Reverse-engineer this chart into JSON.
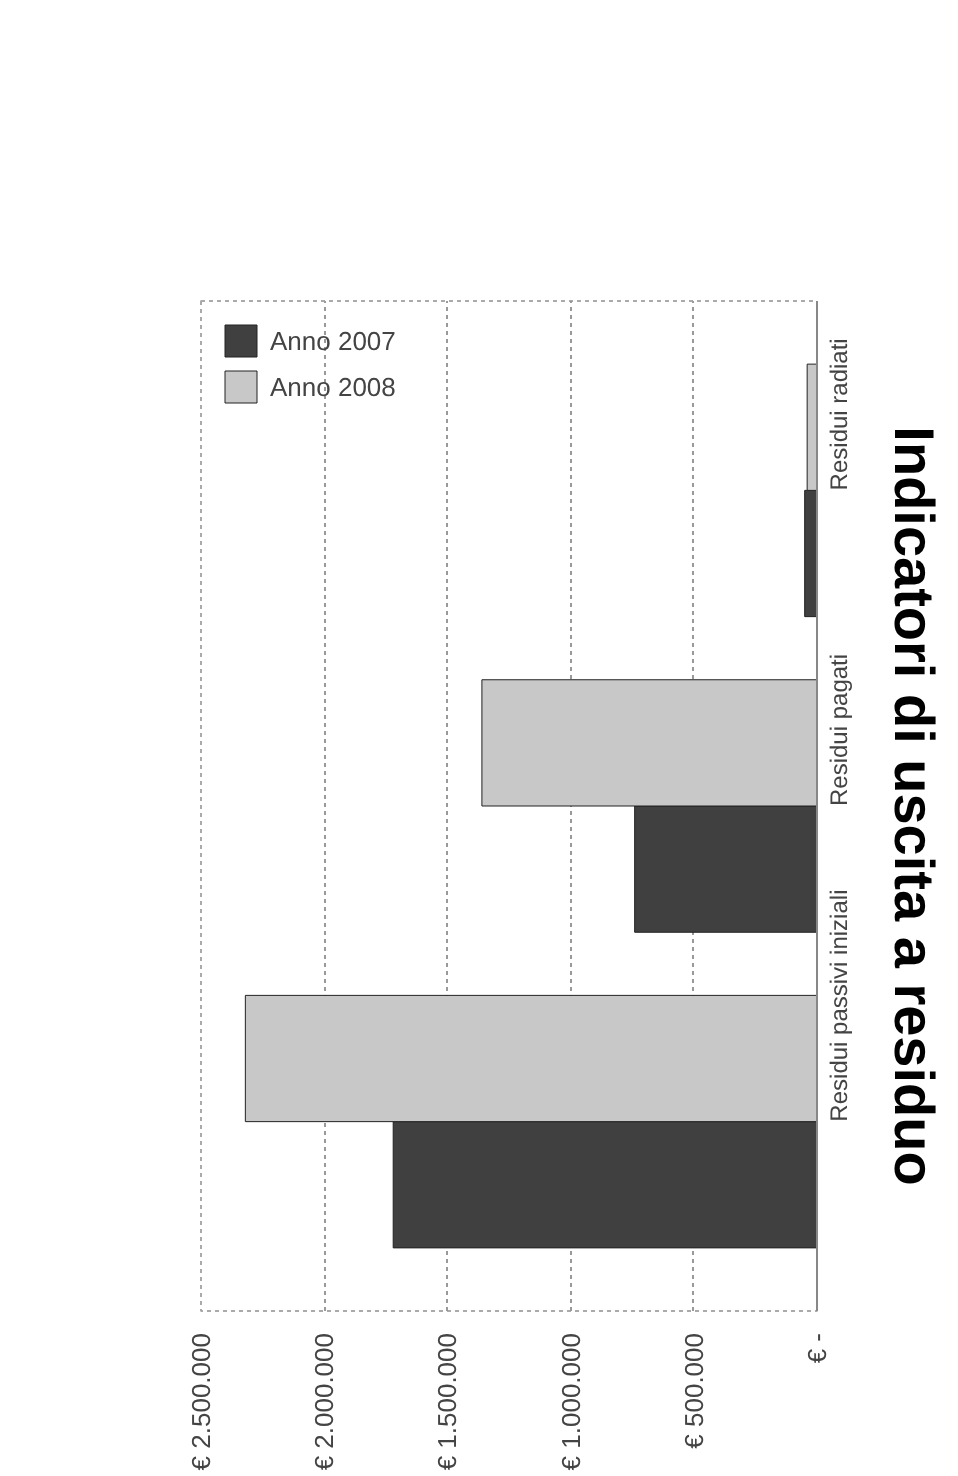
{
  "chart_data": {
    "type": "bar",
    "orientation": "horizontal",
    "title": "Indicatori di uscita a residuo",
    "categories": [
      "Residui radiati",
      "Residui pagati",
      "Residui passivi iniziali"
    ],
    "series": [
      {
        "name": "Anno 2007",
        "color": "#404040",
        "values": [
          50000,
          740000,
          1720000
        ]
      },
      {
        "name": "Anno 2008",
        "color": "#c8c8c8",
        "values": [
          40000,
          1360000,
          2320000
        ]
      }
    ],
    "xlim": [
      2500000,
      0
    ],
    "xticks": [
      {
        "value": 2500000,
        "label": "€ 2.500.000"
      },
      {
        "value": 2000000,
        "label": "€ 2.000.000"
      },
      {
        "value": 1500000,
        "label": "€ 1.500.000"
      },
      {
        "value": 1000000,
        "label": "€ 1.000.000"
      },
      {
        "value": 500000,
        "label": "€ 500.000"
      },
      {
        "value": 0,
        "label": "€ -"
      }
    ],
    "grid": "x",
    "legend": "top left"
  }
}
